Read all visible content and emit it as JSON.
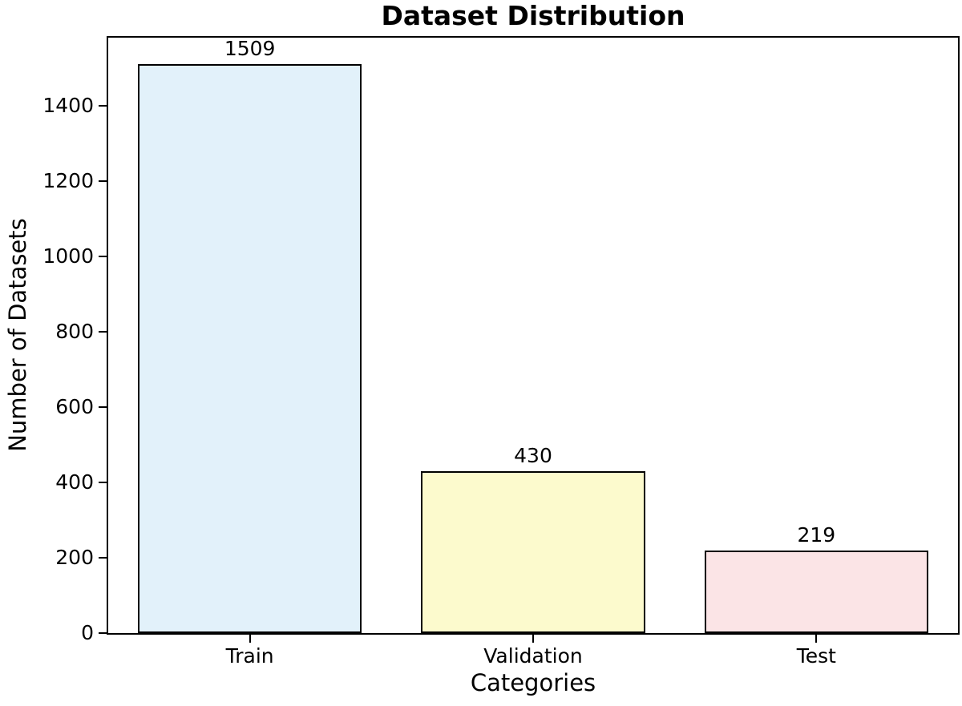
{
  "chart_data": {
    "type": "bar",
    "title": "Dataset Distribution",
    "xlabel": "Categories",
    "ylabel": "Number of Datasets",
    "categories": [
      "Train",
      "Validation",
      "Test"
    ],
    "values": [
      1509,
      430,
      219
    ],
    "value_labels": [
      "1509",
      "430",
      "219"
    ],
    "bar_colors": [
      "#E2F1FA",
      "#FCFACD",
      "#FBE4E6"
    ],
    "bar_edge_color": "#000000",
    "ylim": [
      0,
      1580
    ],
    "yticks": [
      0,
      200,
      400,
      600,
      800,
      1000,
      1200,
      1400
    ],
    "grid": false,
    "legend_position": "none",
    "background_color": "#ffffff",
    "text_color": "#000000"
  }
}
